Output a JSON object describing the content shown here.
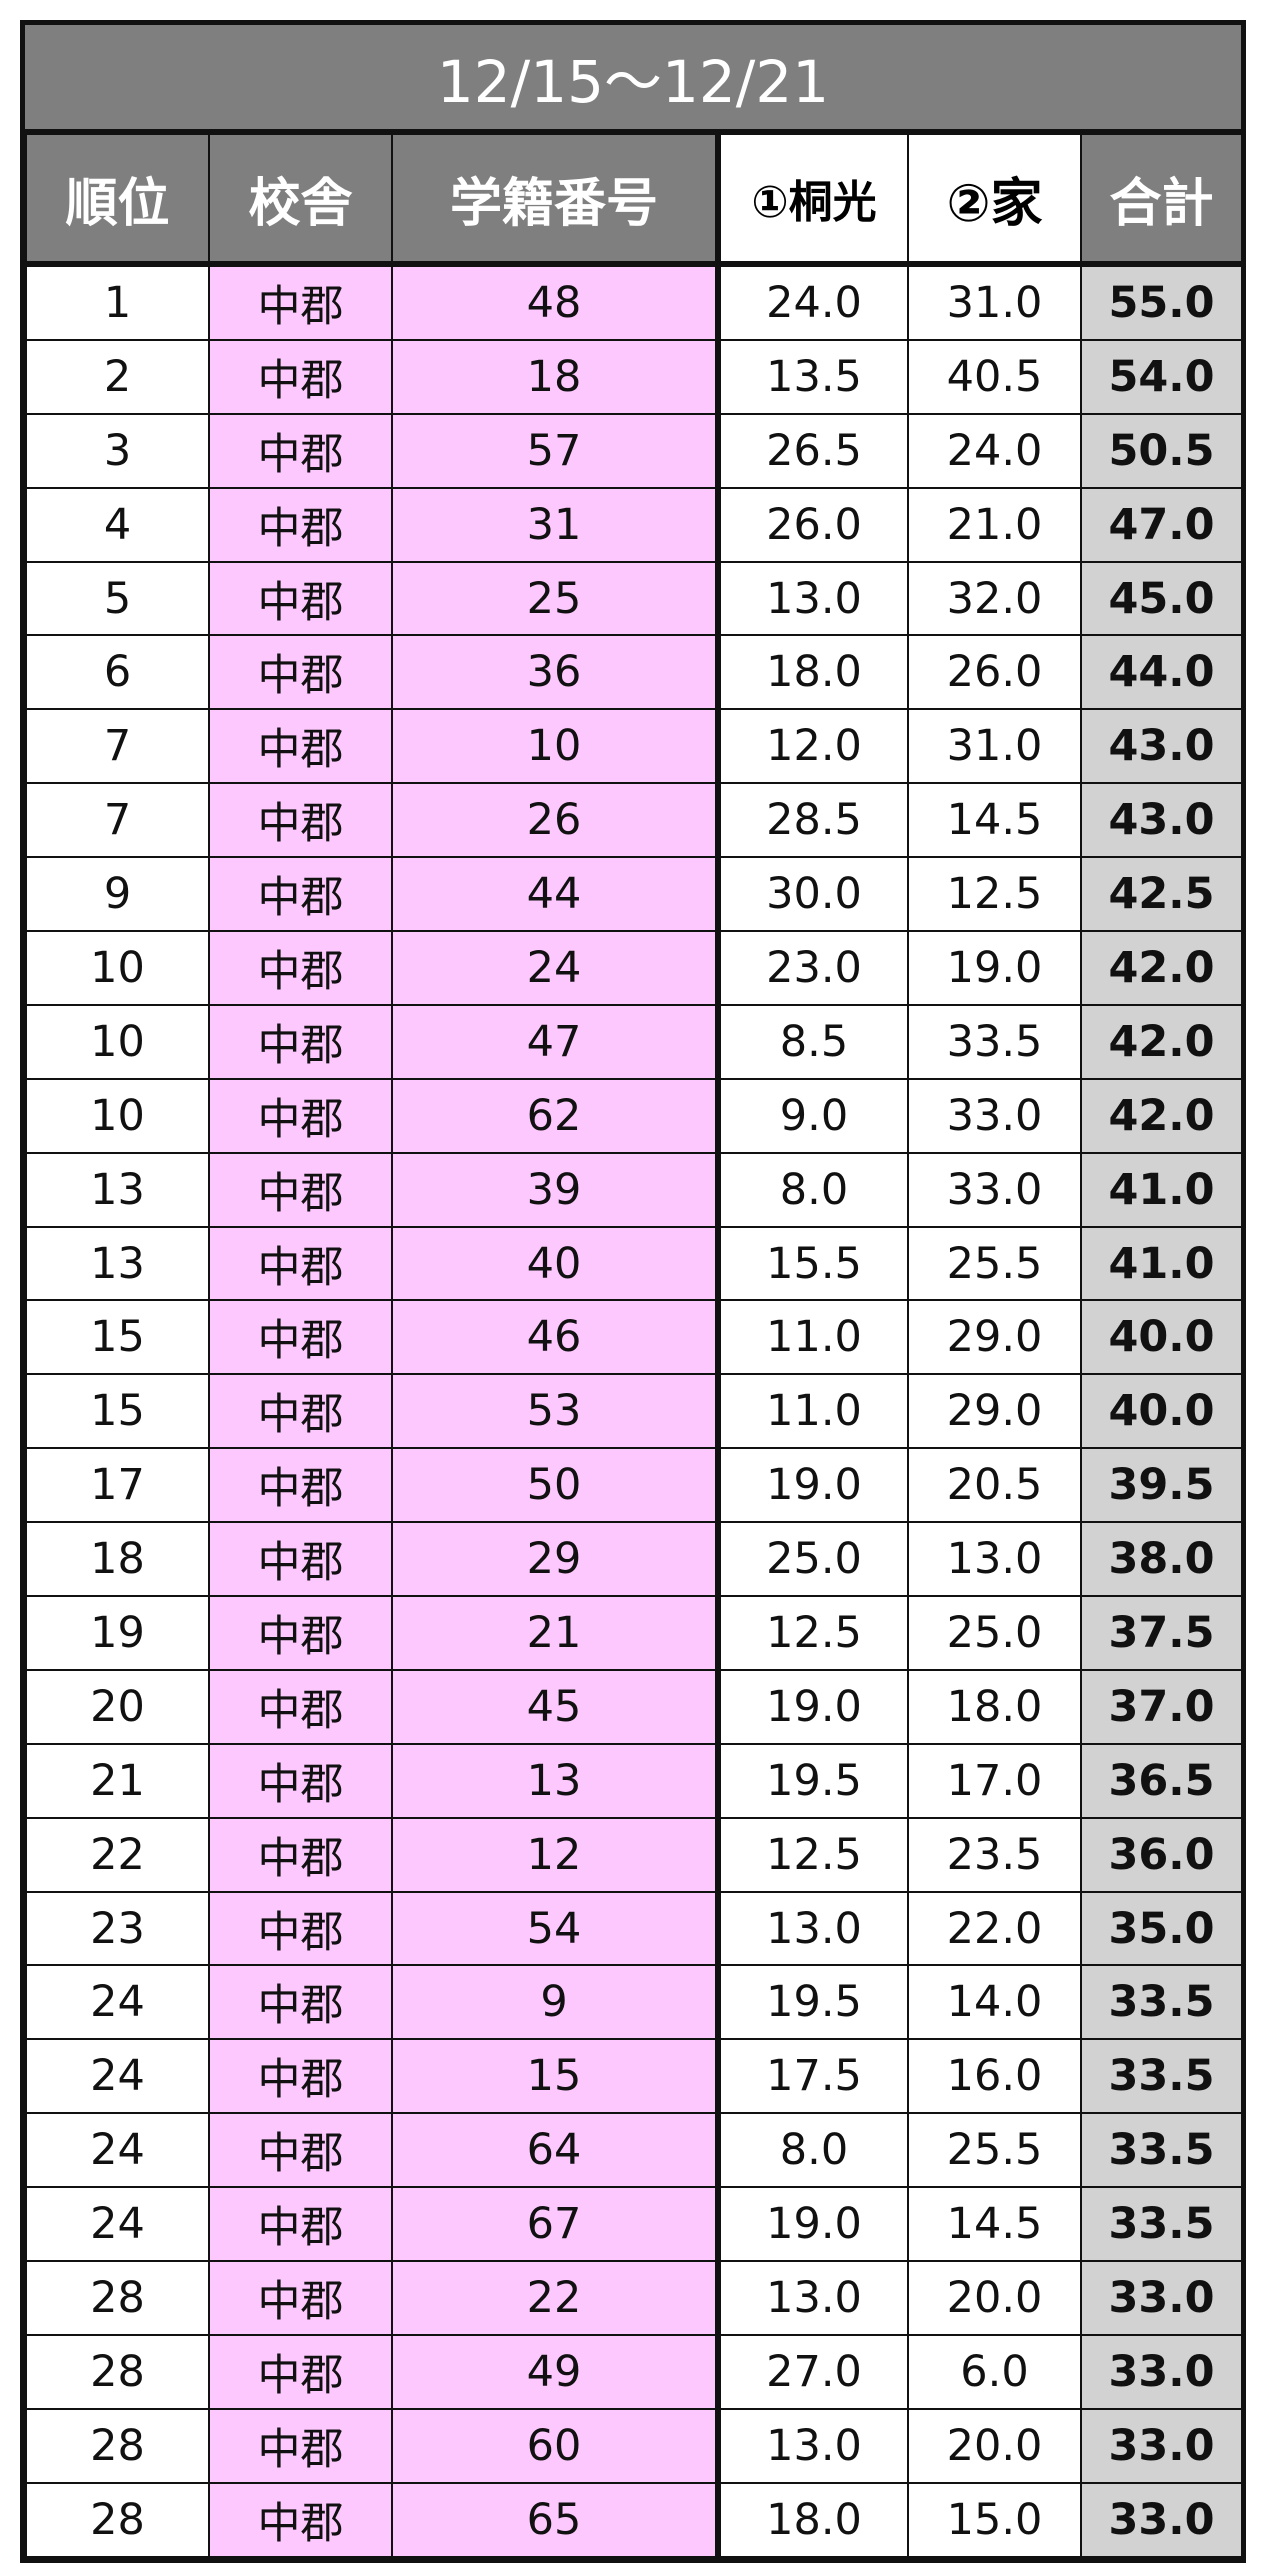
{
  "title": "12/15〜12/21",
  "headers": [
    "順位",
    "校舎",
    "学籍番号",
    "①桐光",
    "②家",
    "合計"
  ],
  "colors": {
    "header_bg": "#7f7f7f",
    "school_bg": "#fdc8fd",
    "total_bg": "#d2d2d2"
  },
  "rows": [
    [
      "1",
      "中郡",
      "48",
      "24.0",
      "31.0",
      "55.0"
    ],
    [
      "2",
      "中郡",
      "18",
      "13.5",
      "40.5",
      "54.0"
    ],
    [
      "3",
      "中郡",
      "57",
      "26.5",
      "24.0",
      "50.5"
    ],
    [
      "4",
      "中郡",
      "31",
      "26.0",
      "21.0",
      "47.0"
    ],
    [
      "5",
      "中郡",
      "25",
      "13.0",
      "32.0",
      "45.0"
    ],
    [
      "6",
      "中郡",
      "36",
      "18.0",
      "26.0",
      "44.0"
    ],
    [
      "7",
      "中郡",
      "10",
      "12.0",
      "31.0",
      "43.0"
    ],
    [
      "7",
      "中郡",
      "26",
      "28.5",
      "14.5",
      "43.0"
    ],
    [
      "9",
      "中郡",
      "44",
      "30.0",
      "12.5",
      "42.5"
    ],
    [
      "10",
      "中郡",
      "24",
      "23.0",
      "19.0",
      "42.0"
    ],
    [
      "10",
      "中郡",
      "47",
      "8.5",
      "33.5",
      "42.0"
    ],
    [
      "10",
      "中郡",
      "62",
      "9.0",
      "33.0",
      "42.0"
    ],
    [
      "13",
      "中郡",
      "39",
      "8.0",
      "33.0",
      "41.0"
    ],
    [
      "13",
      "中郡",
      "40",
      "15.5",
      "25.5",
      "41.0"
    ],
    [
      "15",
      "中郡",
      "46",
      "11.0",
      "29.0",
      "40.0"
    ],
    [
      "15",
      "中郡",
      "53",
      "11.0",
      "29.0",
      "40.0"
    ],
    [
      "17",
      "中郡",
      "50",
      "19.0",
      "20.5",
      "39.5"
    ],
    [
      "18",
      "中郡",
      "29",
      "25.0",
      "13.0",
      "38.0"
    ],
    [
      "19",
      "中郡",
      "21",
      "12.5",
      "25.0",
      "37.5"
    ],
    [
      "20",
      "中郡",
      "45",
      "19.0",
      "18.0",
      "37.0"
    ],
    [
      "21",
      "中郡",
      "13",
      "19.5",
      "17.0",
      "36.5"
    ],
    [
      "22",
      "中郡",
      "12",
      "12.5",
      "23.5",
      "36.0"
    ],
    [
      "23",
      "中郡",
      "54",
      "13.0",
      "22.0",
      "35.0"
    ],
    [
      "24",
      "中郡",
      "9",
      "19.5",
      "14.0",
      "33.5"
    ],
    [
      "24",
      "中郡",
      "15",
      "17.5",
      "16.0",
      "33.5"
    ],
    [
      "24",
      "中郡",
      "64",
      "8.0",
      "25.5",
      "33.5"
    ],
    [
      "24",
      "中郡",
      "67",
      "19.0",
      "14.5",
      "33.5"
    ],
    [
      "28",
      "中郡",
      "22",
      "13.0",
      "20.0",
      "33.0"
    ],
    [
      "28",
      "中郡",
      "49",
      "27.0",
      "6.0",
      "33.0"
    ],
    [
      "28",
      "中郡",
      "60",
      "13.0",
      "20.0",
      "33.0"
    ],
    [
      "28",
      "中郡",
      "65",
      "18.0",
      "15.0",
      "33.0"
    ]
  ]
}
